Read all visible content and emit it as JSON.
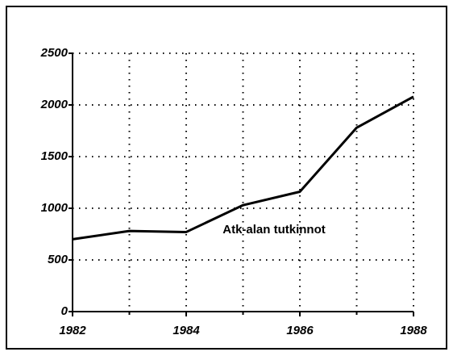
{
  "chart_data": {
    "type": "line",
    "x": [
      1982,
      1983,
      1984,
      1985,
      1986,
      1987,
      1988
    ],
    "series": [
      {
        "name": "Atk-alan tutkinnot",
        "color": "#000000",
        "values": [
          700,
          780,
          770,
          1030,
          1160,
          1780,
          2080
        ]
      }
    ],
    "xlim": [
      1982,
      1988
    ],
    "xticks": [
      1982,
      1984,
      1986,
      1988
    ],
    "minor_xticks": [
      1983,
      1985,
      1987
    ],
    "ylim": [
      0,
      2500
    ],
    "yticks": [
      0,
      500,
      1000,
      1500,
      2000,
      2500
    ],
    "grid": true
  }
}
